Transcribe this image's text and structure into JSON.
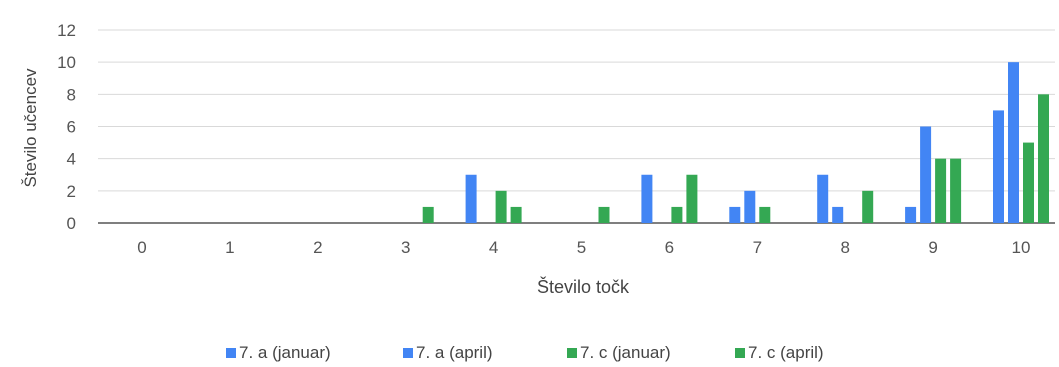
{
  "chart_data": {
    "type": "bar",
    "title": "",
    "xlabel": "Število točk",
    "ylabel": "Število učencev",
    "categories": [
      "0",
      "1",
      "2",
      "3",
      "4",
      "5",
      "6",
      "7",
      "8",
      "9",
      "10"
    ],
    "ylim": [
      0,
      12
    ],
    "yticks": [
      0,
      2,
      4,
      6,
      8,
      10,
      12
    ],
    "grid": true,
    "legend_position": "bottom",
    "series": [
      {
        "name": "7. a (januar)",
        "color": "#4285f4",
        "values": [
          0,
          0,
          0,
          0,
          3,
          0,
          3,
          1,
          3,
          1,
          7
        ]
      },
      {
        "name": "7. a (april)",
        "color": "#4285f4",
        "values": [
          0,
          0,
          0,
          0,
          0,
          0,
          0,
          2,
          1,
          6,
          10
        ]
      },
      {
        "name": "7. c (januar)",
        "color": "#34a853",
        "values": [
          0,
          0,
          0,
          0,
          2,
          0,
          1,
          1,
          0,
          4,
          5
        ]
      },
      {
        "name": "7. c (april)",
        "color": "#34a853",
        "values": [
          0,
          0,
          0,
          1,
          1,
          1,
          3,
          0,
          2,
          4,
          8
        ]
      }
    ]
  }
}
